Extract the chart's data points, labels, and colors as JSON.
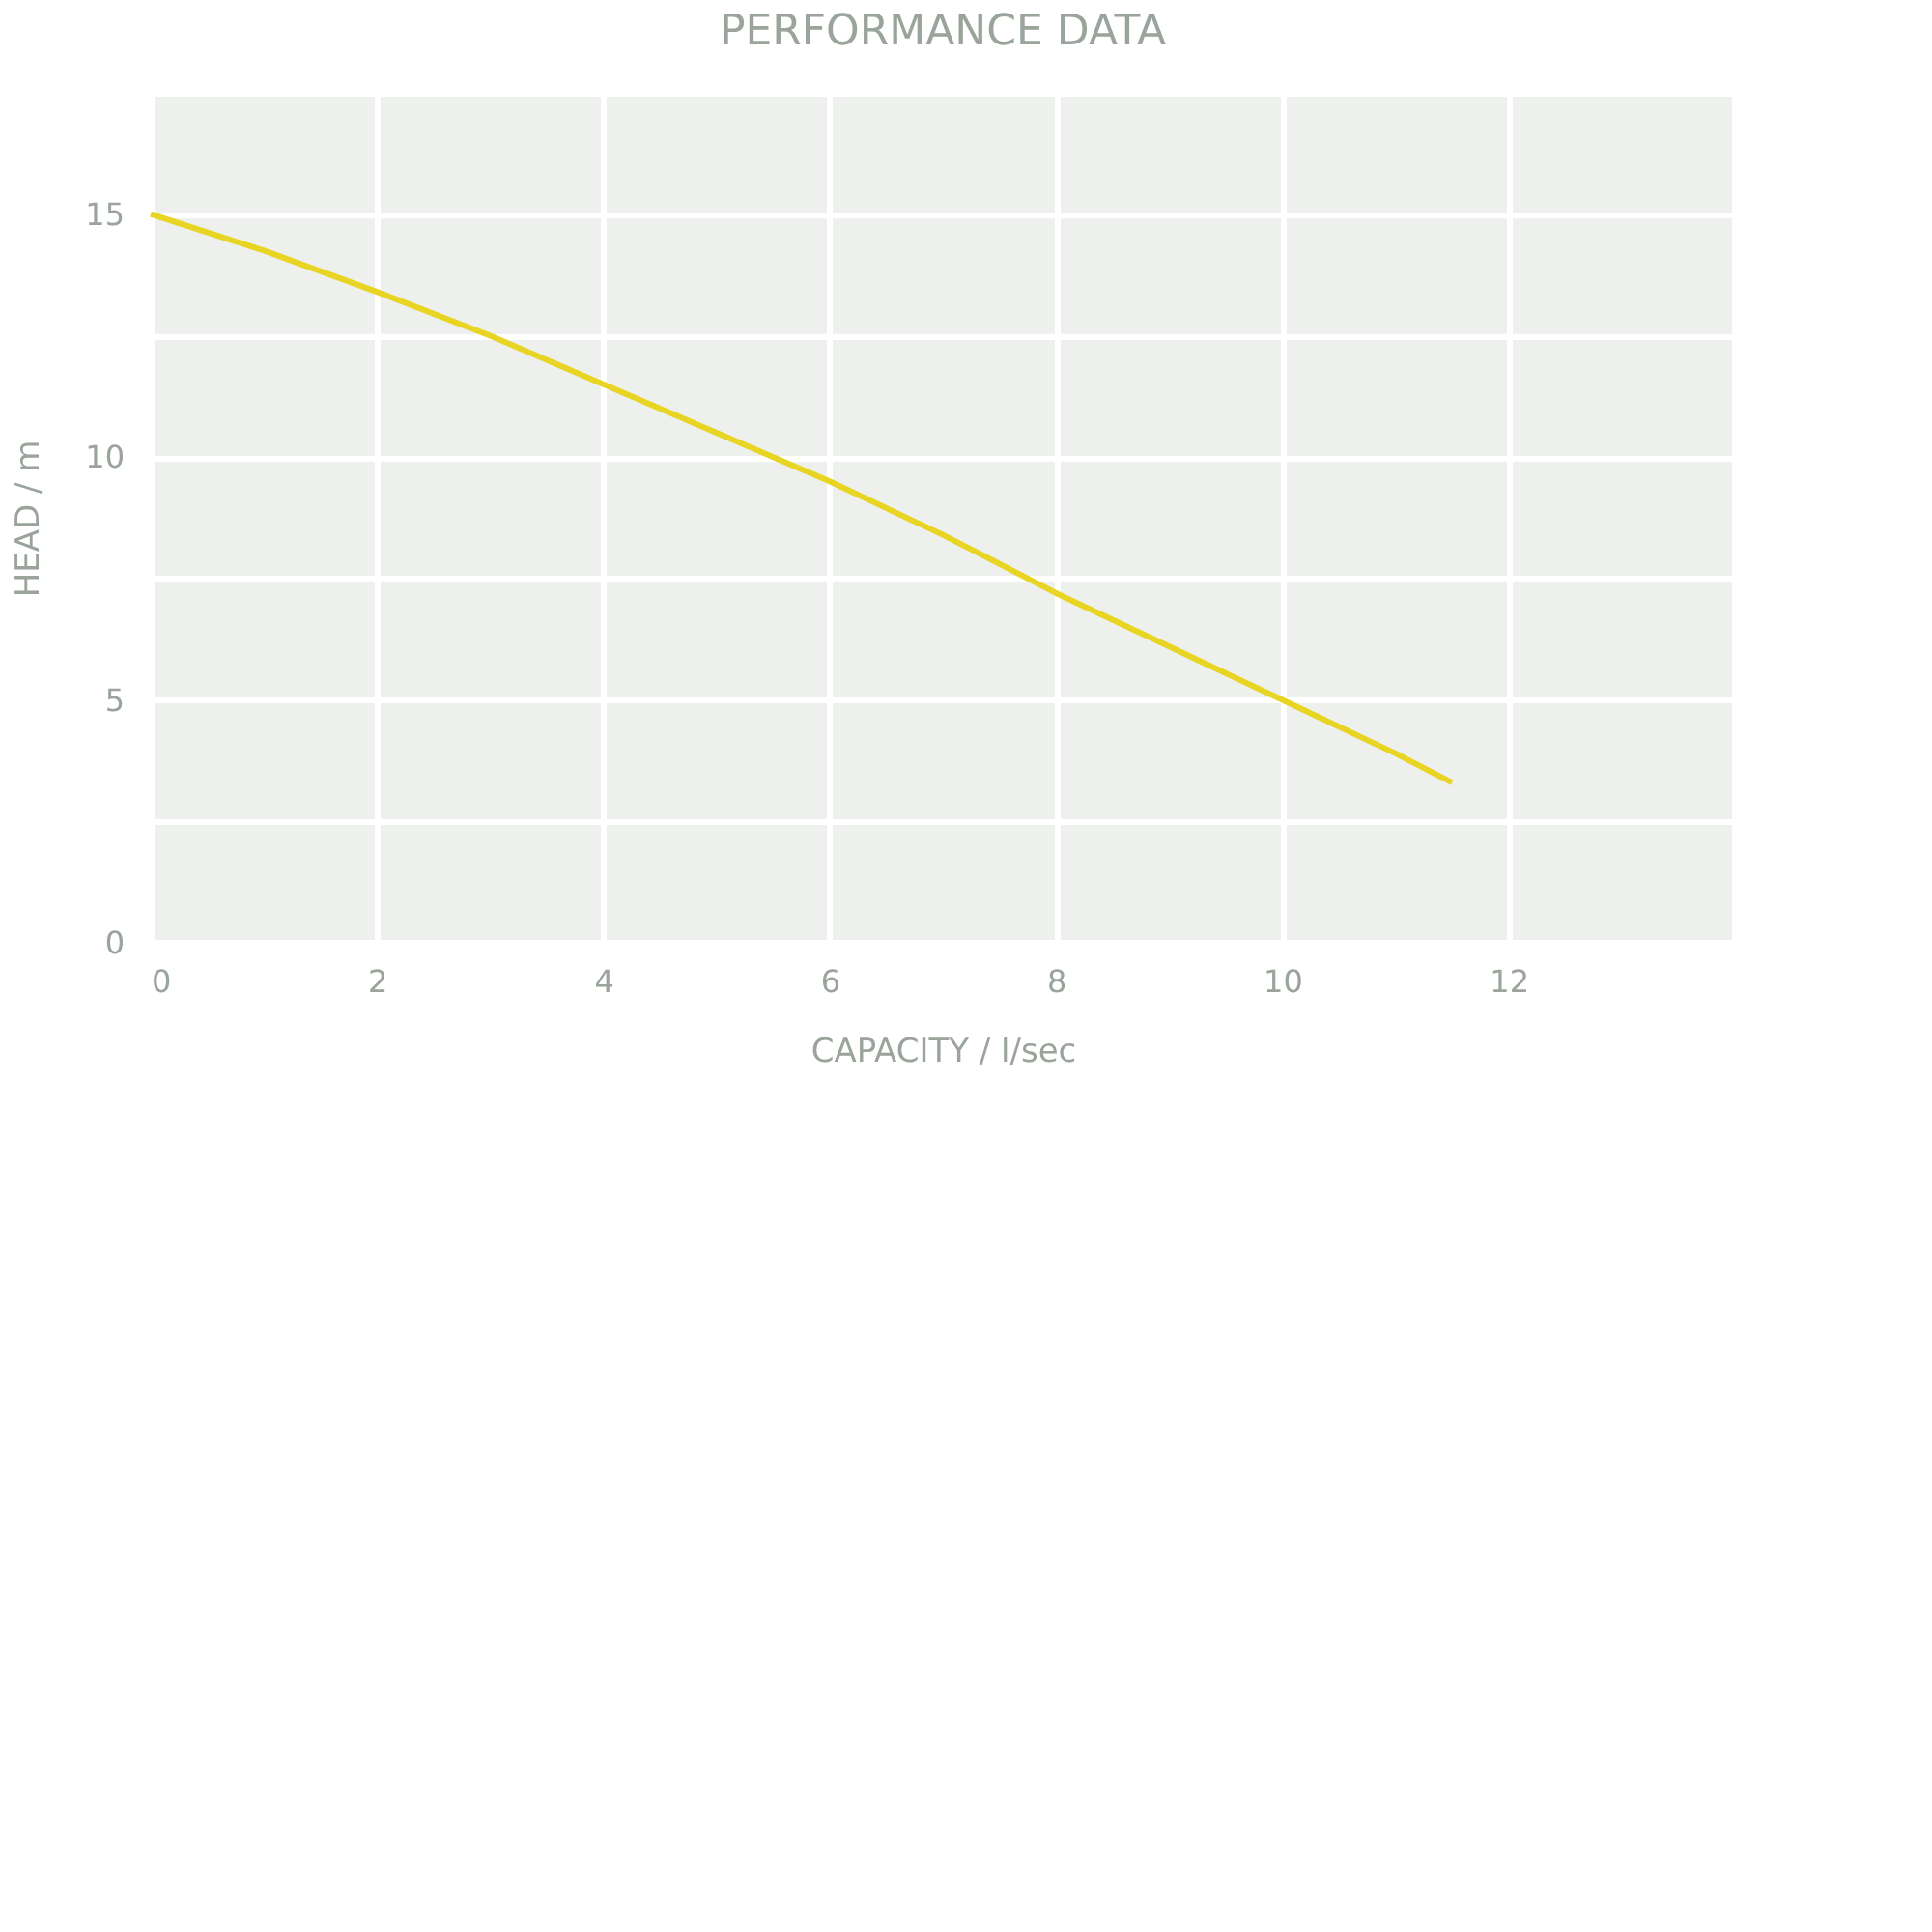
{
  "chart_data": {
    "type": "line",
    "title": "PERFORMANCE DATA",
    "xlabel": "CAPACITY / l/sec",
    "ylabel": "HEAD / m",
    "x": [
      0,
      1,
      2,
      3,
      4,
      5,
      6,
      7,
      8,
      9,
      10,
      11,
      11.5
    ],
    "series": [
      {
        "color": "#e8d422",
        "values": [
          15,
          14.25,
          13.4,
          12.5,
          11.5,
          10.5,
          9.5,
          8.4,
          7.2,
          6.1,
          5.0,
          3.9,
          3.3
        ]
      }
    ],
    "xlim": [
      0,
      14
    ],
    "xticks": [
      0,
      2,
      4,
      6,
      8,
      10,
      12,
      {
        "value": 14,
        "label": null
      }
    ],
    "ylim": [
      0,
      17.5
    ],
    "yticks": [
      0,
      {
        "value": 2.5,
        "label": null
      },
      5,
      {
        "value": 7.5,
        "label": null
      },
      10,
      {
        "value": 12.5,
        "label": null
      },
      15,
      {
        "value": 17.5,
        "label": null
      }
    ],
    "grid": true,
    "marker": "none",
    "line_style": "solid"
  }
}
